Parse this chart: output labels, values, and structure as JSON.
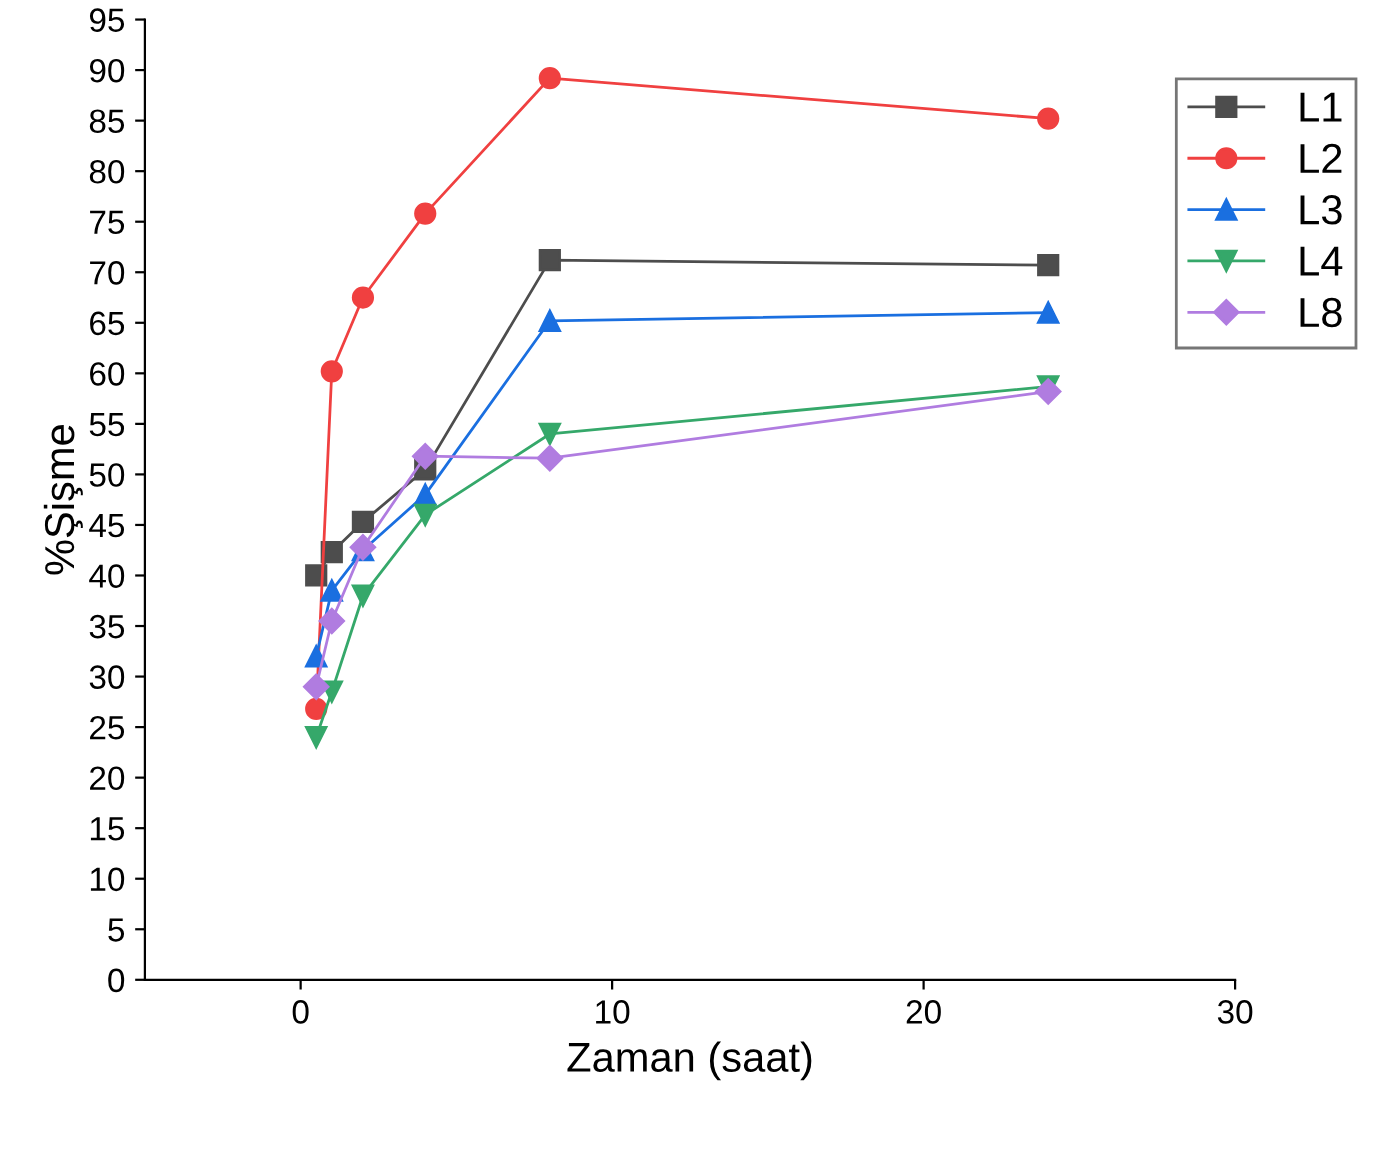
{
  "chart_data": {
    "type": "line",
    "xlabel": "Zaman (saat)",
    "ylabel": "%Şişme",
    "x": [
      0.5,
      1,
      2,
      4,
      8,
      24
    ],
    "series": [
      {
        "name": "L1",
        "color": "#4d4d4d",
        "marker": "square",
        "values": [
          40,
          42.3,
          45.3,
          50.5,
          71.2,
          70.7
        ]
      },
      {
        "name": "L2",
        "color": "#f04040",
        "marker": "circle",
        "values": [
          26.8,
          60.2,
          67.5,
          75.8,
          89.2,
          85.2
        ]
      },
      {
        "name": "L3",
        "color": "#1a6fe0",
        "marker": "triangle",
        "values": [
          32,
          38.5,
          42.5,
          48,
          65.2,
          66
        ]
      },
      {
        "name": "L4",
        "color": "#35a86a",
        "marker": "triangle_down",
        "values": [
          24,
          28.5,
          38,
          46,
          54,
          58.7
        ]
      },
      {
        "name": "L8",
        "color": "#b07ce0",
        "marker": "diamond",
        "values": [
          29,
          35.5,
          42.8,
          51.8,
          51.6,
          58.2
        ]
      }
    ],
    "xlim": [
      -5,
      30
    ],
    "xticks": [
      0,
      10,
      20,
      30
    ],
    "ylim": [
      0,
      95
    ],
    "yticks": [
      0,
      5,
      10,
      15,
      20,
      25,
      30,
      35,
      40,
      45,
      50,
      55,
      60,
      65,
      70,
      75,
      80,
      85,
      90,
      95
    ],
    "grid": false,
    "legend": "top right",
    "line_style": "solid"
  }
}
